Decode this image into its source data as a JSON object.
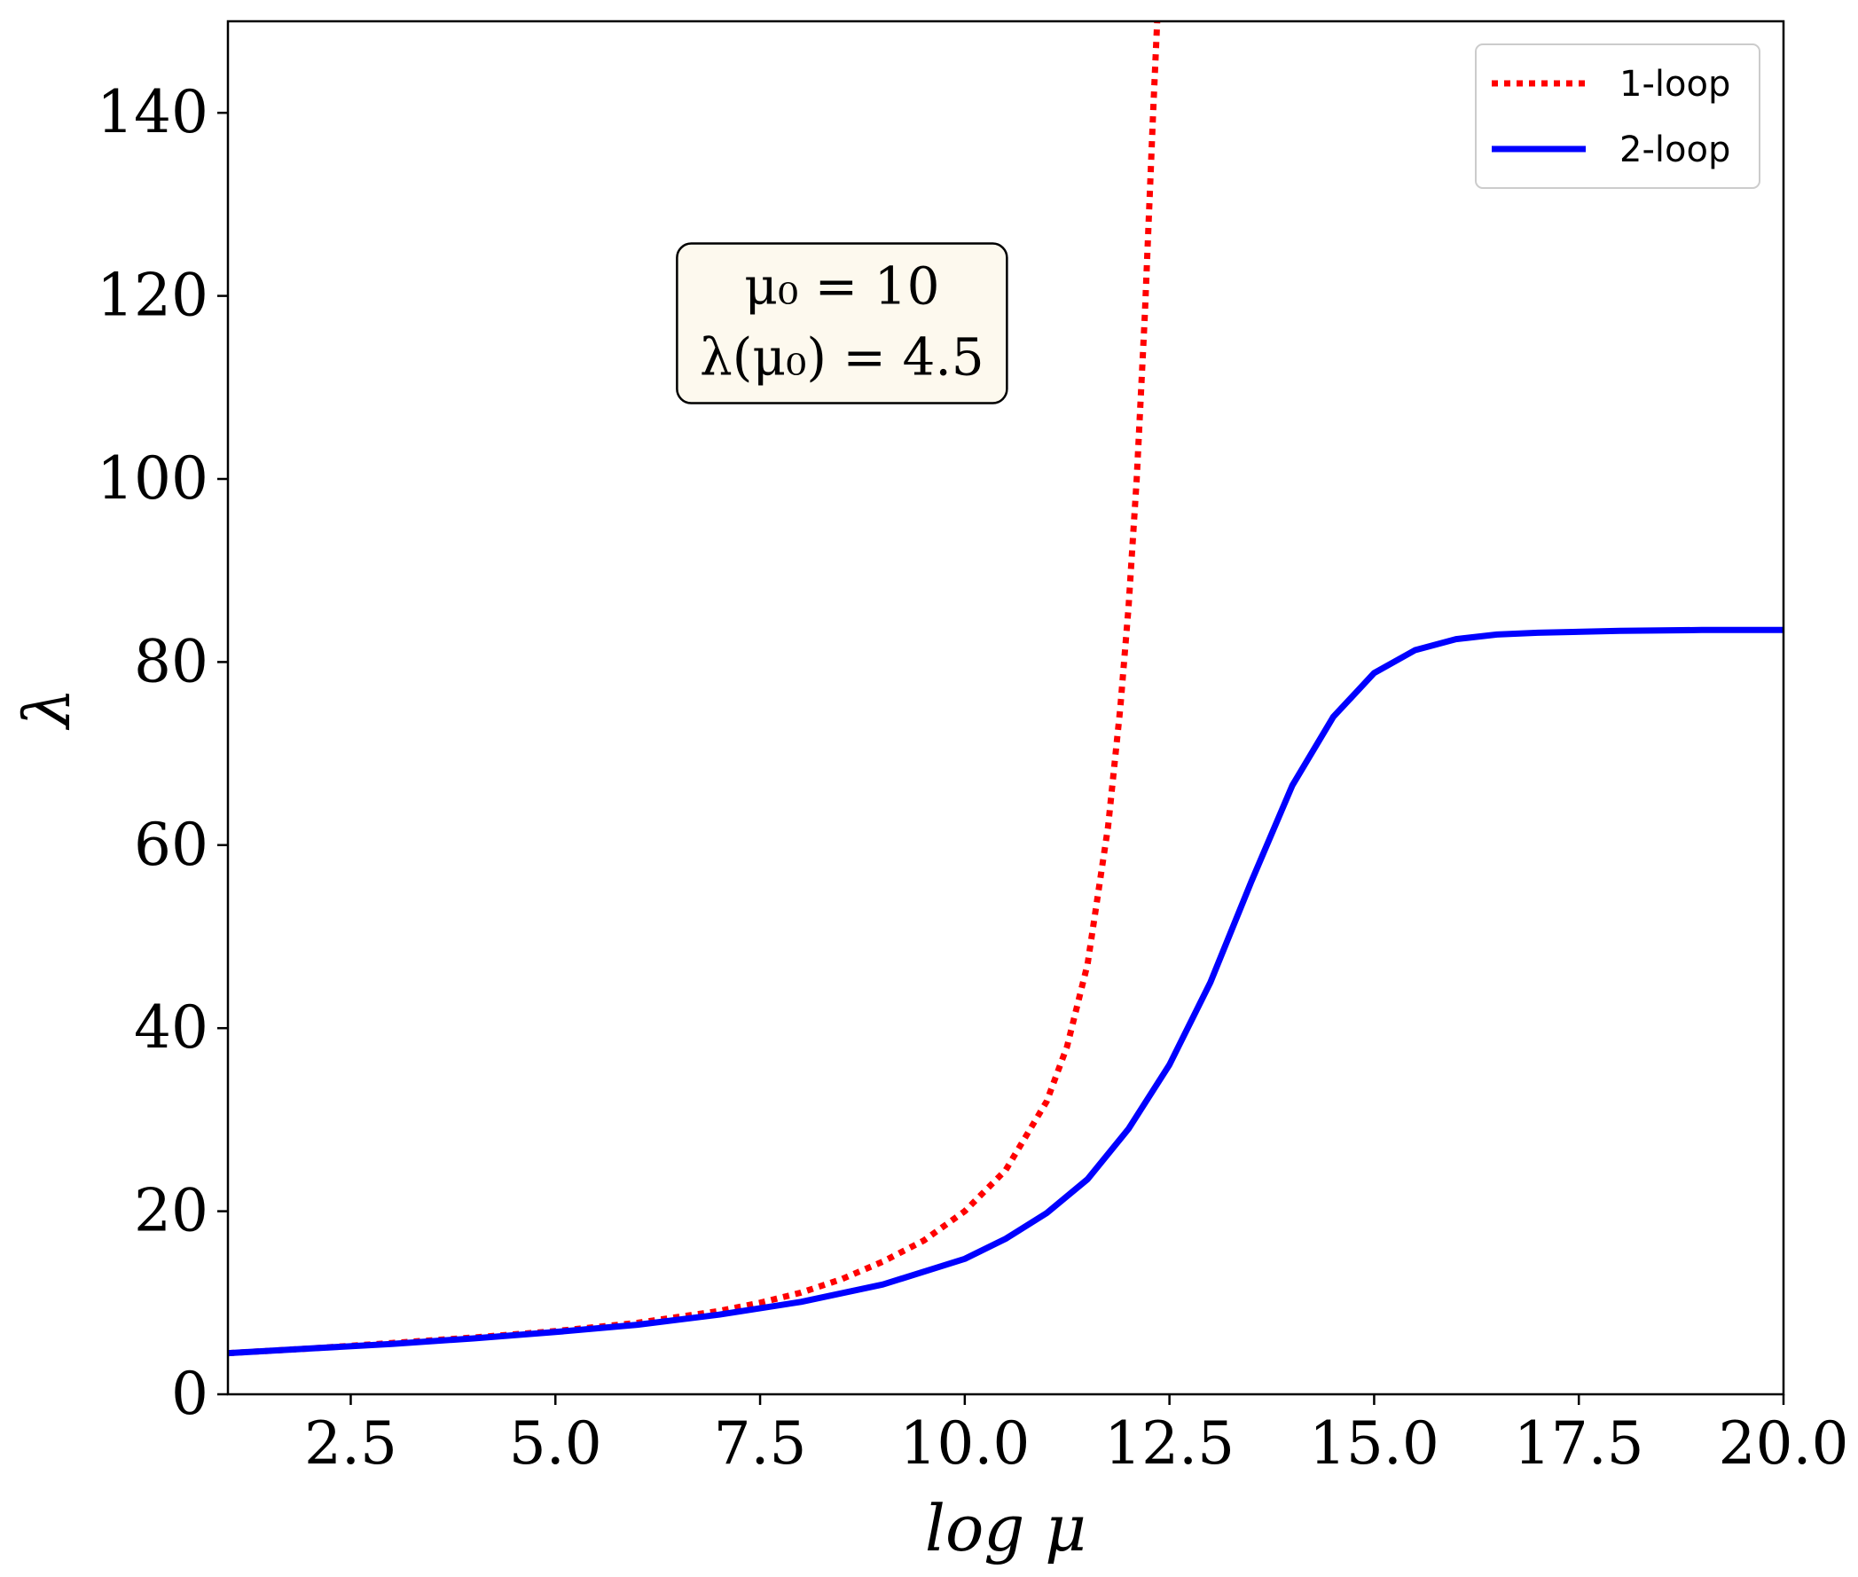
{
  "chart_data": {
    "type": "line",
    "xlabel": "log μ",
    "ylabel": "λ",
    "xlim": [
      1.0,
      20.0
    ],
    "ylim": [
      0,
      150
    ],
    "xticks": [
      2.5,
      5.0,
      7.5,
      10.0,
      12.5,
      15.0,
      17.5,
      20.0
    ],
    "xtick_labels": [
      "2.5",
      "5.0",
      "7.5",
      "10.0",
      "12.5",
      "15.0",
      "17.5",
      "20.0"
    ],
    "yticks": [
      0,
      20,
      40,
      60,
      80,
      100,
      120,
      140
    ],
    "ytick_labels": [
      "0",
      "20",
      "40",
      "60",
      "80",
      "100",
      "120",
      "140"
    ],
    "grid": false,
    "legend": "top-right",
    "annotation": {
      "line1": "μ₀ = 10",
      "line2": "λ(μ₀) = 4.5",
      "x": 8.5,
      "y": 117
    },
    "series": [
      {
        "name": "1-loop",
        "color": "#ff0000",
        "style": "dotted",
        "x": [
          1.0,
          2.0,
          3.0,
          4.0,
          5.0,
          6.0,
          7.0,
          7.5,
          8.0,
          8.5,
          9.0,
          9.5,
          10.0,
          10.5,
          11.0,
          11.25,
          11.5,
          11.75,
          11.9,
          12.0,
          12.1,
          12.2,
          12.3,
          12.35
        ],
        "y": [
          4.5,
          5.0,
          5.6,
          6.2,
          6.9,
          7.8,
          9.1,
          10.0,
          11.1,
          12.6,
          14.5,
          16.8,
          20.0,
          24.5,
          32.0,
          38.0,
          47.0,
          62.0,
          75.0,
          86.0,
          100.0,
          118.0,
          140.0,
          150.0
        ]
      },
      {
        "name": "2-loop",
        "color": "#0000ff",
        "style": "solid",
        "x": [
          1.0,
          2.0,
          3.0,
          4.0,
          5.0,
          6.0,
          7.0,
          8.0,
          9.0,
          10.0,
          10.5,
          11.0,
          11.5,
          12.0,
          12.5,
          13.0,
          13.5,
          14.0,
          14.5,
          15.0,
          15.5,
          16.0,
          16.5,
          17.0,
          18.0,
          19.0,
          20.0
        ],
        "y": [
          4.5,
          5.0,
          5.5,
          6.1,
          6.8,
          7.6,
          8.7,
          10.1,
          12.0,
          14.8,
          17.0,
          19.8,
          23.5,
          29.0,
          36.0,
          45.0,
          56.0,
          66.5,
          74.0,
          78.8,
          81.3,
          82.5,
          83.0,
          83.2,
          83.4,
          83.5,
          83.5
        ]
      }
    ]
  }
}
